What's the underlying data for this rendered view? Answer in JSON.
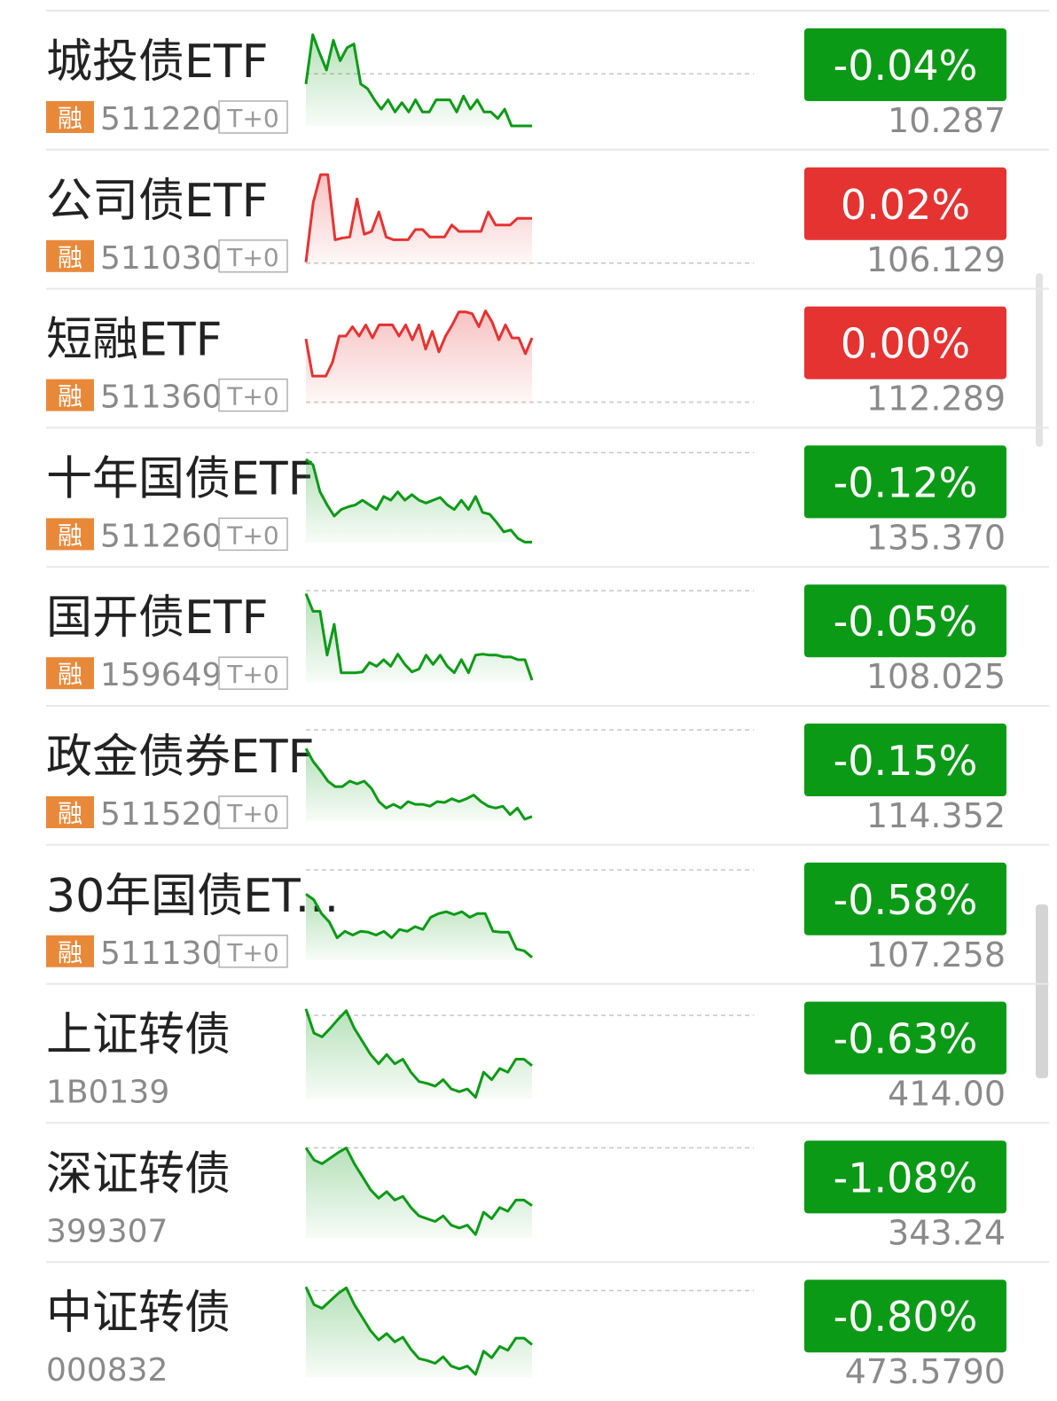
{
  "rows": [
    {
      "name": "城投债ETF",
      "badge": "融",
      "code": "511220",
      "tag": "T+0",
      "change": "-0.04%",
      "price": "10.287",
      "color": "#0b9a16",
      "ref": 56,
      "sparkline": [
        45,
        98,
        78,
        60,
        92,
        70,
        84,
        88,
        45,
        40,
        28,
        18,
        28,
        15,
        25,
        15,
        28,
        15,
        15,
        28,
        28,
        28,
        15,
        32,
        18,
        28,
        15,
        15,
        8,
        18,
        0,
        0,
        0,
        0
      ]
    },
    {
      "name": "公司债ETF",
      "badge": "融",
      "code": "511030",
      "tag": "T+0",
      "change": "0.02%",
      "price": "106.129",
      "color": "#e53332",
      "ref": 2,
      "sparkline": [
        3,
        67,
        97,
        97,
        27,
        29,
        30,
        71,
        33,
        36,
        57,
        30,
        27,
        27,
        27,
        38,
        38,
        30,
        30,
        30,
        43,
        36,
        36,
        36,
        36,
        57,
        43,
        43,
        43,
        50,
        50,
        50
      ]
    },
    {
      "name": "短融ETF",
      "badge": "融",
      "code": "511360",
      "tag": "T+0",
      "change": "0.00%",
      "price": "112.289",
      "color": "#e53332",
      "ref": 2,
      "sparkline": [
        70,
        30,
        30,
        30,
        45,
        73,
        73,
        83,
        73,
        85,
        71,
        85,
        85,
        85,
        73,
        85,
        69,
        85,
        59,
        78,
        56,
        73,
        85,
        99,
        99,
        97,
        83,
        100,
        88,
        69,
        85,
        71,
        71,
        54,
        71
      ]
    },
    {
      "name": "十年国债ETF",
      "badge": "融",
      "code": "511260",
      "tag": "T+0",
      "change": "-0.12%",
      "price": "135.370",
      "color": "#0b9a16",
      "ref": 97,
      "sparkline": [
        90,
        84,
        55,
        41,
        29,
        36,
        39,
        41,
        46,
        41,
        36,
        50,
        46,
        55,
        46,
        52,
        46,
        43,
        46,
        49,
        41,
        36,
        46,
        36,
        50,
        33,
        31,
        22,
        12,
        14,
        5,
        1,
        1
      ]
    },
    {
      "name": "国开债ETF",
      "badge": "融",
      "code": "159649",
      "tag": "T+0",
      "change": "-0.05%",
      "price": "108.025",
      "color": "#0b9a16",
      "ref": 98,
      "sparkline": [
        95,
        76,
        76,
        29,
        62,
        10,
        10,
        10,
        11,
        21,
        17,
        24,
        17,
        30,
        19,
        11,
        14,
        29,
        19,
        29,
        17,
        10,
        24,
        10,
        29,
        30,
        29,
        29,
        27,
        27,
        24,
        24,
        2
      ]
    },
    {
      "name": "政金债券ETF",
      "badge": "融",
      "code": "511520",
      "tag": "T+0",
      "change": "-0.15%",
      "price": "114.352",
      "color": "#0b9a16",
      "ref": 98,
      "sparkline": [
        78,
        64,
        54,
        43,
        37,
        37,
        43,
        40,
        43,
        35,
        21,
        14,
        18,
        14,
        21,
        18,
        18,
        16,
        21,
        20,
        24,
        21,
        24,
        28,
        21,
        16,
        14,
        16,
        7,
        14,
        2,
        5
      ]
    },
    {
      "name": "30年国债ET...",
      "badge": "融",
      "code": "511130",
      "tag": "T+0",
      "change": "-0.58%",
      "price": "107.258",
      "color": "#0b9a16",
      "ref": 97,
      "sparkline": [
        71,
        65,
        50,
        41,
        24,
        31,
        27,
        31,
        30,
        27,
        31,
        24,
        33,
        31,
        36,
        33,
        46,
        50,
        52,
        49,
        52,
        46,
        50,
        50,
        31,
        30,
        30,
        12,
        10,
        3
      ]
    },
    {
      "name": "上证转债",
      "code": "1B0139",
      "change": "-0.63%",
      "price": "414.00",
      "color": "#0b9a16",
      "ref": 90,
      "sparkline": [
        97,
        71,
        67,
        76,
        86,
        95,
        76,
        62,
        48,
        38,
        48,
        38,
        43,
        29,
        19,
        17,
        14,
        21,
        11,
        8,
        11,
        2,
        29,
        21,
        33,
        29,
        43,
        43,
        36
      ]
    },
    {
      "name": "深证转债",
      "code": "399307",
      "change": "-1.08%",
      "price": "343.24",
      "color": "#0b9a16",
      "ref": 97,
      "sparkline": [
        97,
        84,
        80,
        86,
        92,
        97,
        80,
        66,
        52,
        43,
        50,
        41,
        45,
        33,
        24,
        21,
        18,
        24,
        14,
        11,
        14,
        4,
        28,
        21,
        33,
        29,
        41,
        41,
        35
      ]
    },
    {
      "name": "中证转债",
      "code": "000832",
      "change": "-0.80%",
      "price": "473.5790",
      "color": "#0b9a16",
      "ref": 93,
      "sparkline": [
        97,
        78,
        74,
        82,
        90,
        96,
        78,
        64,
        50,
        40,
        47,
        38,
        43,
        30,
        20,
        18,
        15,
        22,
        12,
        9,
        12,
        3,
        28,
        21,
        33,
        29,
        42,
        42,
        35
      ]
    }
  ]
}
